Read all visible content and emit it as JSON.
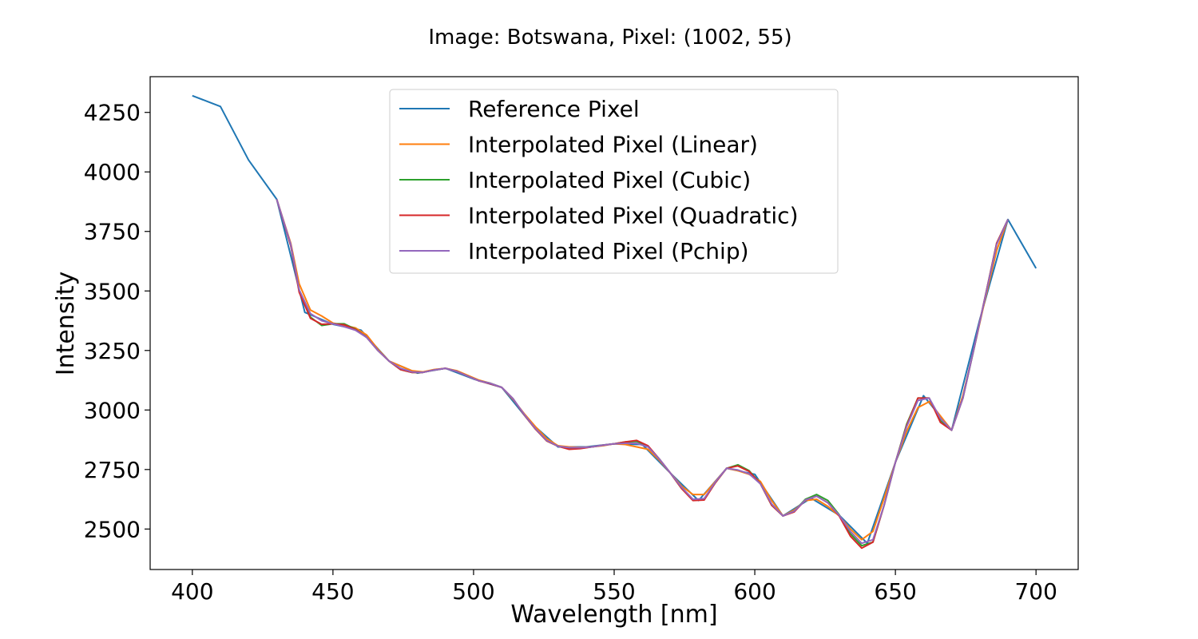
{
  "chart_data": {
    "type": "line",
    "title": "Image: Botswana, Pixel: (1002, 55)",
    "xlabel": "Wavelength [nm]",
    "ylabel": "Intensity",
    "xlim": [
      385,
      715
    ],
    "ylim": [
      2330,
      4400
    ],
    "xticks": [
      400,
      450,
      500,
      550,
      600,
      650,
      700
    ],
    "yticks": [
      2500,
      2750,
      3000,
      3250,
      3500,
      3750,
      4000,
      4250
    ],
    "grid": false,
    "legend_position": "top-center",
    "series": [
      {
        "name": "Reference Pixel",
        "color": "#1f77b4",
        "x": [
          400,
          410,
          420,
          430,
          440,
          450,
          460,
          470,
          480,
          490,
          500,
          510,
          520,
          530,
          540,
          550,
          560,
          570,
          580,
          590,
          600,
          610,
          620,
          630,
          640,
          650,
          660,
          670,
          680,
          690,
          700
        ],
        "y": [
          4320,
          4275,
          4050,
          3885,
          3410,
          3360,
          3335,
          3205,
          3155,
          3175,
          3130,
          3095,
          2950,
          2845,
          2845,
          2858,
          2855,
          2735,
          2620,
          2755,
          2730,
          2555,
          2630,
          2558,
          2440,
          2780,
          3060,
          2915,
          3380,
          3800,
          3595
        ]
      },
      {
        "name": "Interpolated Pixel (Linear)",
        "color": "#ff7f0e",
        "x": [
          430,
          435,
          438,
          442,
          446,
          450,
          454,
          458,
          462,
          466,
          470,
          474,
          478,
          482,
          486,
          490,
          494,
          498,
          502,
          506,
          510,
          514,
          518,
          522,
          526,
          530,
          534,
          538,
          542,
          546,
          550,
          554,
          558,
          562,
          566,
          570,
          574,
          578,
          582,
          586,
          590,
          594,
          598,
          602,
          606,
          610,
          614,
          618,
          622,
          626,
          630,
          634,
          638,
          642,
          646,
          650,
          654,
          658,
          662,
          666,
          670,
          674,
          678,
          682,
          686,
          690
        ],
        "y": [
          3885,
          3700,
          3530,
          3420,
          3395,
          3365,
          3355,
          3345,
          3315,
          3255,
          3205,
          3185,
          3165,
          3160,
          3170,
          3175,
          3165,
          3145,
          3125,
          3112,
          3095,
          3045,
          2985,
          2930,
          2880,
          2850,
          2845,
          2843,
          2845,
          2850,
          2858,
          2855,
          2845,
          2835,
          2790,
          2735,
          2680,
          2645,
          2645,
          2700,
          2755,
          2745,
          2730,
          2700,
          2620,
          2555,
          2580,
          2620,
          2625,
          2595,
          2555,
          2500,
          2455,
          2490,
          2630,
          2780,
          2910,
          3010,
          3035,
          2975,
          2915,
          3060,
          3260,
          3470,
          3670,
          3800
        ]
      },
      {
        "name": "Interpolated Pixel (Cubic)",
        "color": "#2ca02c",
        "x": [
          430,
          435,
          438,
          442,
          446,
          450,
          454,
          458,
          462,
          466,
          470,
          474,
          478,
          482,
          486,
          490,
          494,
          498,
          502,
          506,
          510,
          514,
          518,
          522,
          526,
          530,
          534,
          538,
          542,
          546,
          550,
          554,
          558,
          562,
          566,
          570,
          574,
          578,
          582,
          586,
          590,
          594,
          598,
          602,
          606,
          610,
          614,
          618,
          622,
          626,
          630,
          634,
          638,
          642,
          646,
          650,
          654,
          658,
          662,
          666,
          670,
          674,
          678,
          682,
          686,
          690
        ],
        "y": [
          3885,
          3690,
          3500,
          3390,
          3355,
          3362,
          3362,
          3340,
          3305,
          3250,
          3205,
          3170,
          3158,
          3158,
          3168,
          3175,
          3162,
          3142,
          3122,
          3112,
          3095,
          3048,
          2980,
          2920,
          2870,
          2848,
          2838,
          2840,
          2845,
          2852,
          2858,
          2866,
          2868,
          2848,
          2795,
          2735,
          2670,
          2622,
          2625,
          2695,
          2755,
          2770,
          2745,
          2690,
          2600,
          2555,
          2575,
          2625,
          2645,
          2620,
          2560,
          2480,
          2430,
          2445,
          2600,
          2780,
          2940,
          3050,
          3050,
          2955,
          2915,
          3050,
          3260,
          3480,
          3700,
          3800
        ]
      },
      {
        "name": "Interpolated Pixel (Quadratic)",
        "color": "#d62728",
        "x": [
          430,
          435,
          438,
          442,
          446,
          450,
          454,
          458,
          462,
          466,
          470,
          474,
          478,
          482,
          486,
          490,
          494,
          498,
          502,
          506,
          510,
          514,
          518,
          522,
          526,
          530,
          534,
          538,
          542,
          546,
          550,
          554,
          558,
          562,
          566,
          570,
          574,
          578,
          582,
          586,
          590,
          594,
          598,
          602,
          606,
          610,
          614,
          618,
          622,
          626,
          630,
          634,
          638,
          642,
          646,
          650,
          654,
          658,
          662,
          666,
          670,
          674,
          678,
          682,
          686,
          690
        ],
        "y": [
          3885,
          3690,
          3495,
          3385,
          3360,
          3362,
          3358,
          3338,
          3305,
          3250,
          3205,
          3170,
          3158,
          3158,
          3168,
          3175,
          3162,
          3142,
          3122,
          3110,
          3095,
          3048,
          2980,
          2920,
          2870,
          2848,
          2835,
          2838,
          2845,
          2852,
          2858,
          2866,
          2872,
          2850,
          2795,
          2735,
          2670,
          2620,
          2622,
          2695,
          2755,
          2765,
          2742,
          2690,
          2600,
          2555,
          2572,
          2622,
          2638,
          2610,
          2555,
          2470,
          2420,
          2445,
          2600,
          2780,
          2935,
          3050,
          3050,
          2948,
          2915,
          3050,
          3262,
          3480,
          3700,
          3800
        ]
      },
      {
        "name": "Interpolated Pixel (Pchip)",
        "color": "#9467bd",
        "x": [
          430,
          435,
          438,
          442,
          446,
          450,
          454,
          458,
          462,
          466,
          470,
          474,
          478,
          482,
          486,
          490,
          494,
          498,
          502,
          506,
          510,
          514,
          518,
          522,
          526,
          530,
          534,
          538,
          542,
          546,
          550,
          554,
          558,
          562,
          566,
          570,
          574,
          578,
          582,
          586,
          590,
          594,
          598,
          602,
          606,
          610,
          614,
          618,
          622,
          626,
          630,
          634,
          638,
          642,
          646,
          650,
          654,
          658,
          662,
          666,
          670,
          674,
          678,
          682,
          686,
          690
        ],
        "y": [
          3885,
          3695,
          3505,
          3405,
          3375,
          3362,
          3350,
          3335,
          3305,
          3250,
          3205,
          3175,
          3160,
          3158,
          3168,
          3175,
          3162,
          3142,
          3122,
          3112,
          3095,
          3048,
          2982,
          2922,
          2872,
          2848,
          2842,
          2842,
          2845,
          2852,
          2858,
          2860,
          2860,
          2845,
          2795,
          2735,
          2675,
          2625,
          2628,
          2698,
          2755,
          2748,
          2732,
          2690,
          2605,
          2555,
          2575,
          2622,
          2638,
          2610,
          2558,
          2490,
          2440,
          2455,
          2600,
          2780,
          2930,
          3040,
          3050,
          2965,
          2915,
          3050,
          3262,
          3478,
          3695,
          3800
        ]
      }
    ]
  }
}
